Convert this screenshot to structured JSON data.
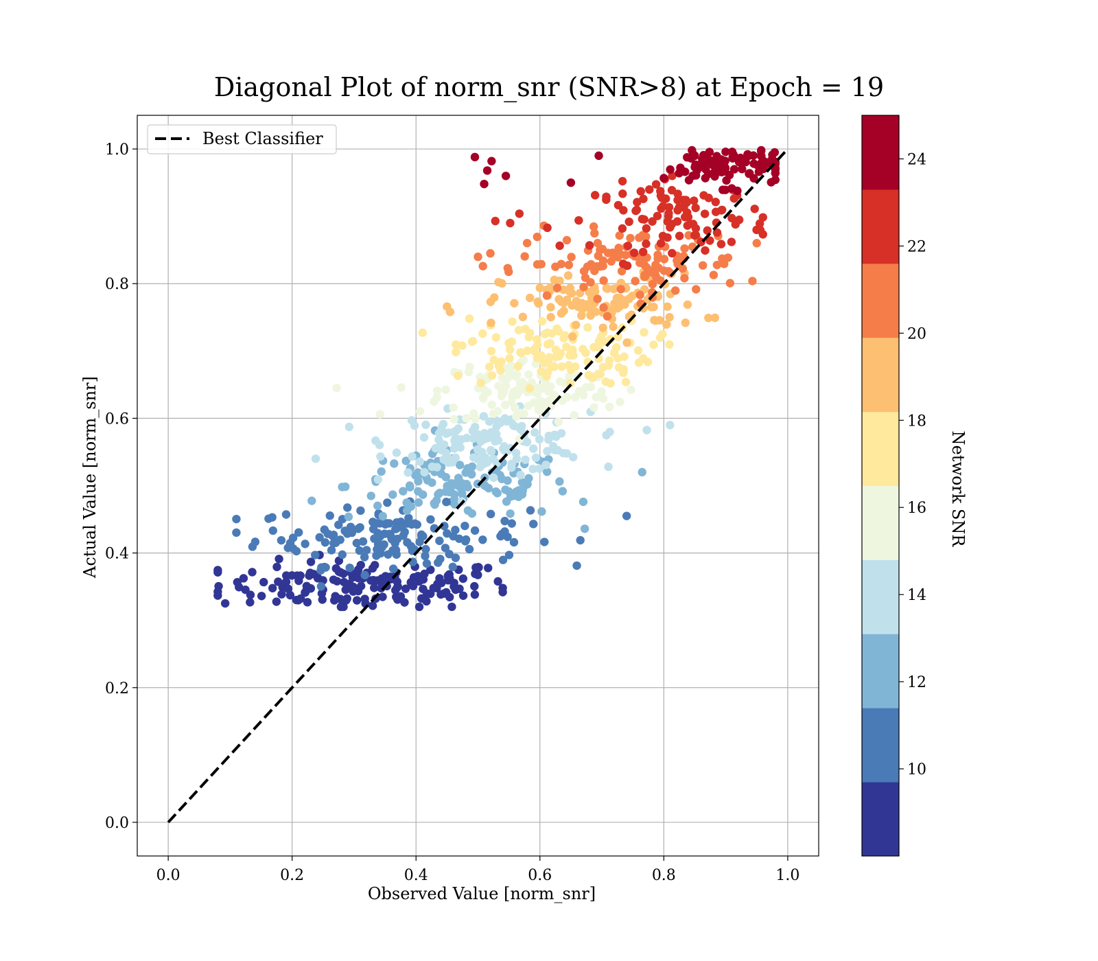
{
  "chart_data": {
    "type": "scatter",
    "title": "Diagonal Plot of norm_snr (SNR>8) at Epoch = 19",
    "xlabel": "Observed Value [norm_snr]",
    "ylabel": "Actual Value [norm_snr]",
    "xlim": [
      -0.05,
      1.05
    ],
    "ylim": [
      -0.05,
      1.05
    ],
    "xticks": [
      "0.0",
      "0.2",
      "0.4",
      "0.6",
      "0.8",
      "1.0"
    ],
    "yticks": [
      "0.0",
      "0.2",
      "0.4",
      "0.6",
      "0.8",
      "1.0"
    ],
    "grid": true,
    "legend": {
      "position": "upper-left",
      "entries": [
        "Best Classifier"
      ]
    },
    "reference_line": {
      "name": "Best Classifier",
      "style": "dashed",
      "color": "#000000",
      "from": [
        0,
        0
      ],
      "to": [
        1,
        1
      ]
    },
    "colorbar": {
      "label": "Network SNR",
      "range": [
        8,
        25
      ],
      "ticks": [
        "10",
        "12",
        "14",
        "16",
        "18",
        "20",
        "22",
        "24"
      ],
      "bands": [
        {
          "min": 8,
          "color": "#313695"
        },
        {
          "min": 9.7,
          "color": "#4a7bb7"
        },
        {
          "min": 11.4,
          "color": "#81b5d6"
        },
        {
          "min": 13.1,
          "color": "#c0e1ec"
        },
        {
          "min": 14.8,
          "color": "#eef6e0"
        },
        {
          "min": 16.5,
          "color": "#fee99d"
        },
        {
          "min": 18.2,
          "color": "#fdbf71"
        },
        {
          "min": 19.9,
          "color": "#f57d4a"
        },
        {
          "min": 21.6,
          "color": "#d73027"
        },
        {
          "min": 23.3,
          "color": "#a50026"
        }
      ]
    },
    "clusters_description": "Points approximated by generated clusters per SNR band",
    "point_groups": [
      {
        "snr": 8.8,
        "count": 160,
        "x_mean": 0.32,
        "x_sd": 0.12,
        "y_mean": 0.352,
        "y_sd": 0.018,
        "x_min": 0.08,
        "x_max": 0.54
      },
      {
        "snr": 10.5,
        "count": 150,
        "x_mean": 0.36,
        "x_sd": 0.11,
        "y_mean": 0.425,
        "y_sd": 0.022,
        "x_min": 0.11,
        "x_max": 0.74
      },
      {
        "snr": 12.2,
        "count": 130,
        "x_mean": 0.47,
        "x_sd": 0.09,
        "y_mean": 0.5,
        "y_sd": 0.025,
        "x_min": 0.22,
        "x_max": 0.76
      },
      {
        "snr": 13.9,
        "count": 140,
        "x_mean": 0.52,
        "x_sd": 0.08,
        "y_mean": 0.565,
        "y_sd": 0.022,
        "x_min": 0.23,
        "x_max": 0.81
      },
      {
        "snr": 15.6,
        "count": 130,
        "x_mean": 0.58,
        "x_sd": 0.07,
        "y_mean": 0.64,
        "y_sd": 0.025,
        "x_min": 0.27,
        "x_max": 0.86
      },
      {
        "snr": 17.3,
        "count": 120,
        "x_mean": 0.62,
        "x_sd": 0.08,
        "y_mean": 0.7,
        "y_sd": 0.025,
        "x_min": 0.35,
        "x_max": 0.87
      },
      {
        "snr": 19.0,
        "count": 110,
        "x_mean": 0.7,
        "x_sd": 0.08,
        "y_mean": 0.77,
        "y_sd": 0.022,
        "x_min": 0.45,
        "x_max": 0.89
      },
      {
        "snr": 20.7,
        "count": 110,
        "x_mean": 0.75,
        "x_sd": 0.09,
        "y_mean": 0.83,
        "y_sd": 0.025,
        "x_min": 0.5,
        "x_max": 0.95
      },
      {
        "snr": 22.4,
        "count": 100,
        "x_mean": 0.83,
        "x_sd": 0.07,
        "y_mean": 0.9,
        "y_sd": 0.025,
        "x_min": 0.52,
        "x_max": 0.96
      },
      {
        "snr": 24.2,
        "count": 100,
        "x_mean": 0.9,
        "x_sd": 0.05,
        "y_mean": 0.975,
        "y_sd": 0.015,
        "x_min": 0.49,
        "x_max": 0.98
      }
    ],
    "outliers": [
      {
        "x": 0.495,
        "y": 0.988,
        "snr": 24.2
      },
      {
        "x": 0.522,
        "y": 0.982,
        "snr": 24.2
      },
      {
        "x": 0.515,
        "y": 0.968,
        "snr": 24.2
      },
      {
        "x": 0.545,
        "y": 0.96,
        "snr": 24.2
      },
      {
        "x": 0.51,
        "y": 0.948,
        "snr": 24.2
      },
      {
        "x": 0.65,
        "y": 0.95,
        "snr": 24.2
      },
      {
        "x": 0.695,
        "y": 0.99,
        "snr": 24.2
      },
      {
        "x": 0.528,
        "y": 0.893,
        "snr": 22.4
      },
      {
        "x": 0.552,
        "y": 0.89,
        "snr": 22.4
      },
      {
        "x": 0.612,
        "y": 0.883,
        "snr": 22.4
      },
      {
        "x": 0.508,
        "y": 0.826,
        "snr": 20.7
      },
      {
        "x": 0.52,
        "y": 0.845,
        "snr": 20.7
      },
      {
        "x": 0.548,
        "y": 0.823,
        "snr": 20.7
      },
      {
        "x": 0.45,
        "y": 0.766,
        "snr": 19.0
      },
      {
        "x": 0.455,
        "y": 0.758,
        "snr": 19.0
      },
      {
        "x": 0.272,
        "y": 0.645,
        "snr": 15.6
      },
      {
        "x": 0.342,
        "y": 0.606,
        "snr": 15.6
      },
      {
        "x": 0.238,
        "y": 0.54,
        "snr": 13.9
      },
      {
        "x": 0.81,
        "y": 0.59,
        "snr": 13.9
      },
      {
        "x": 0.67,
        "y": 0.476,
        "snr": 12.2
      },
      {
        "x": 0.765,
        "y": 0.52,
        "snr": 12.2
      },
      {
        "x": 0.74,
        "y": 0.455,
        "snr": 10.5
      }
    ]
  }
}
